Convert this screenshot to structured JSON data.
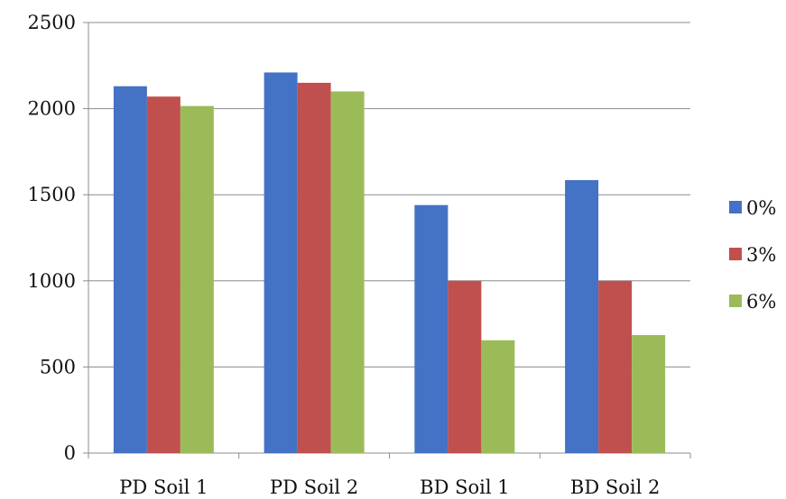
{
  "chart_data": {
    "type": "bar",
    "title": "",
    "xlabel": "",
    "ylabel": "",
    "ylim": [
      0,
      2500
    ],
    "yticks": [
      0,
      500,
      1000,
      1500,
      2000,
      2500
    ],
    "grid": true,
    "legend_position": "right",
    "categories": [
      "PD Soil 1",
      "PD Soil 2",
      "BD Soil 1",
      "BD Soil 2"
    ],
    "series": [
      {
        "name": "0%",
        "color": "#4472C4",
        "values": [
          2130,
          2210,
          1440,
          1585
        ]
      },
      {
        "name": "3%",
        "color": "#C0504D",
        "values": [
          2070,
          2150,
          1000,
          1000
        ]
      },
      {
        "name": "6%",
        "color": "#9BBB59",
        "values": [
          2015,
          2100,
          655,
          685
        ]
      }
    ]
  }
}
